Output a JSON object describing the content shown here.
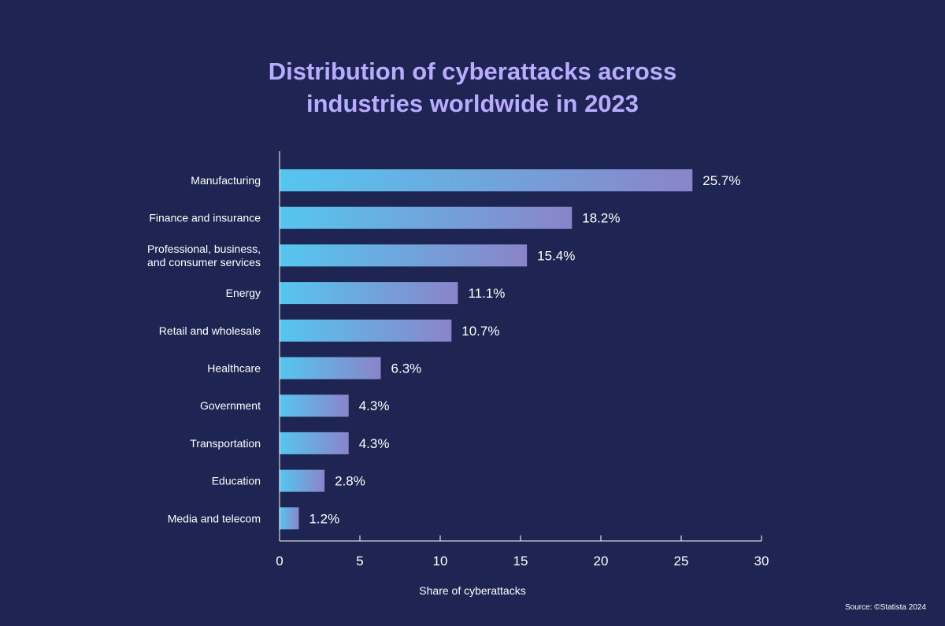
{
  "chart_data": {
    "type": "bar",
    "orientation": "horizontal",
    "title": [
      "Distribution of cyberattacks across",
      "industries worldwide in 2023"
    ],
    "categories": [
      [
        "Manufacturing"
      ],
      [
        "Finance and insurance"
      ],
      [
        "Professional, business,",
        "and consumer services"
      ],
      [
        "Energy"
      ],
      [
        "Retail and wholesale"
      ],
      [
        "Healthcare"
      ],
      [
        "Government"
      ],
      [
        "Transportation"
      ],
      [
        "Education"
      ],
      [
        "Media and telecom"
      ]
    ],
    "values": [
      25.7,
      18.2,
      15.4,
      11.1,
      10.7,
      6.3,
      4.3,
      4.3,
      2.8,
      1.2
    ],
    "value_labels": [
      "25.7%",
      "18.2%",
      "15.4%",
      "11.1%",
      "10.7%",
      "6.3%",
      "4.3%",
      "4.3%",
      "2.8%",
      "1.2%"
    ],
    "xlabel": "Share of cyberattacks",
    "xlim": [
      0,
      30
    ],
    "xticks": [
      0,
      5,
      10,
      15,
      20,
      25,
      30
    ],
    "grid": false,
    "colors": {
      "background": "#1e2552",
      "title": "#b9acff",
      "bar_start": "#55c6ef",
      "bar_end": "#8a84c9",
      "text": "#ffffff",
      "axis": "#ffffff"
    }
  },
  "source": "Source:  ©Statista 2024"
}
